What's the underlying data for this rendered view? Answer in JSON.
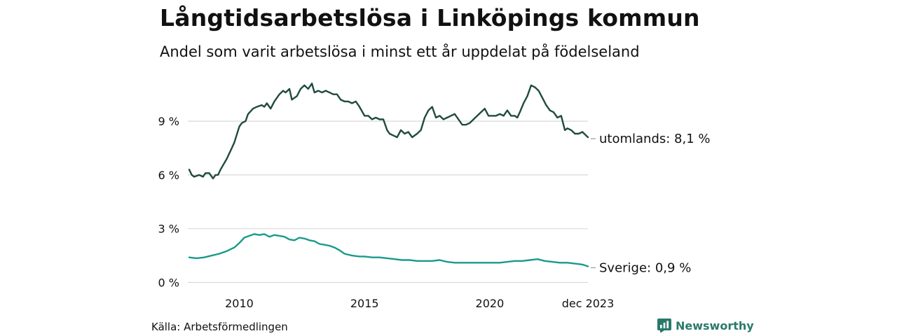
{
  "header": {
    "title": "Långtidsarbetslösa i Linköpings kommun",
    "subtitle": "Andel som varit arbetslösa i minst ett år uppdelat på födelseland"
  },
  "footer": {
    "source": "Källa: Arbetsförmedlingen",
    "brand": "Newsworthy"
  },
  "colors": {
    "utomlands": "#1f4a40",
    "sverige": "#1a9a8a",
    "grid": "#d9d9d9",
    "brand": "#2a7a6b"
  },
  "chart_data": {
    "type": "line",
    "title": "Långtidsarbetslösa i Linköpings kommun",
    "xlabel": "",
    "ylabel": "",
    "ylim": [
      0,
      11.5
    ],
    "xlim": [
      2008.0,
      2023.92
    ],
    "y_ticks": [
      {
        "value": 0,
        "label": "0 %"
      },
      {
        "value": 3,
        "label": "3 %"
      },
      {
        "value": 6,
        "label": "6 %"
      },
      {
        "value": 9,
        "label": "9 %"
      }
    ],
    "x_ticks": [
      {
        "value": 2010,
        "label": "2010"
      },
      {
        "value": 2015,
        "label": "2015"
      },
      {
        "value": 2020,
        "label": "2020"
      },
      {
        "value": 2023.92,
        "label": "dec 2023"
      }
    ],
    "series": [
      {
        "name": "utomlands",
        "end_label": "utomlands: 8,1 %",
        "x": [
          2008.0,
          2008.1,
          2008.2,
          2008.4,
          2008.55,
          2008.65,
          2008.8,
          2008.95,
          2009.05,
          2009.15,
          2009.25,
          2009.5,
          2009.7,
          2009.8,
          2010.0,
          2010.1,
          2010.25,
          2010.35,
          2010.55,
          2010.7,
          2010.9,
          2011.0,
          2011.1,
          2011.25,
          2011.4,
          2011.6,
          2011.75,
          2011.85,
          2012.0,
          2012.1,
          2012.3,
          2012.45,
          2012.6,
          2012.75,
          2012.9,
          2013.0,
          2013.15,
          2013.3,
          2013.45,
          2013.6,
          2013.75,
          2013.9,
          2014.05,
          2014.2,
          2014.35,
          2014.5,
          2014.65,
          2014.8,
          2015.0,
          2015.15,
          2015.3,
          2015.45,
          2015.6,
          2015.75,
          2015.9,
          2016.0,
          2016.15,
          2016.3,
          2016.45,
          2016.6,
          2016.75,
          2016.9,
          2017.1,
          2017.25,
          2017.4,
          2017.55,
          2017.7,
          2017.85,
          2018.0,
          2018.15,
          2018.3,
          2018.45,
          2018.6,
          2018.75,
          2018.9,
          2019.05,
          2019.2,
          2019.35,
          2019.5,
          2019.65,
          2019.8,
          2019.95,
          2020.1,
          2020.25,
          2020.4,
          2020.55,
          2020.7,
          2020.85,
          2021.0,
          2021.1,
          2021.2,
          2021.35,
          2021.5,
          2021.65,
          2021.8,
          2021.95,
          2022.1,
          2022.25,
          2022.4,
          2022.55,
          2022.7,
          2022.85,
          2023.0,
          2023.1,
          2023.25,
          2023.4,
          2023.55,
          2023.7,
          2023.92
        ],
        "values": [
          6.3,
          6.0,
          5.9,
          6.0,
          5.9,
          6.1,
          6.1,
          5.8,
          6.0,
          6.0,
          6.3,
          6.9,
          7.5,
          7.8,
          8.7,
          8.9,
          9.0,
          9.4,
          9.7,
          9.8,
          9.9,
          9.8,
          10.0,
          9.7,
          10.1,
          10.5,
          10.7,
          10.6,
          10.8,
          10.2,
          10.4,
          10.8,
          11.0,
          10.8,
          11.1,
          10.6,
          10.7,
          10.6,
          10.7,
          10.6,
          10.5,
          10.5,
          10.2,
          10.1,
          10.1,
          10.0,
          10.1,
          9.8,
          9.3,
          9.3,
          9.1,
          9.2,
          9.1,
          9.1,
          8.5,
          8.3,
          8.2,
          8.1,
          8.5,
          8.3,
          8.4,
          8.1,
          8.3,
          8.5,
          9.2,
          9.6,
          9.8,
          9.2,
          9.3,
          9.1,
          9.2,
          9.3,
          9.4,
          9.1,
          8.8,
          8.8,
          8.9,
          9.1,
          9.3,
          9.5,
          9.7,
          9.3,
          9.3,
          9.3,
          9.4,
          9.3,
          9.6,
          9.3,
          9.3,
          9.2,
          9.5,
          10.0,
          10.4,
          11.0,
          10.9,
          10.7,
          10.3,
          9.9,
          9.6,
          9.5,
          9.2,
          9.3,
          8.5,
          8.6,
          8.5,
          8.3,
          8.3,
          8.4,
          8.1
        ]
      },
      {
        "name": "Sverige",
        "end_label": "Sverige: 0,9 %",
        "x": [
          2008.0,
          2008.3,
          2008.6,
          2008.9,
          2009.2,
          2009.5,
          2009.8,
          2010.0,
          2010.2,
          2010.4,
          2010.6,
          2010.8,
          2011.0,
          2011.2,
          2011.4,
          2011.6,
          2011.8,
          2012.0,
          2012.2,
          2012.4,
          2012.6,
          2012.8,
          2013.0,
          2013.2,
          2013.4,
          2013.6,
          2013.8,
          2014.0,
          2014.2,
          2014.5,
          2014.8,
          2015.0,
          2015.3,
          2015.6,
          2015.9,
          2016.2,
          2016.5,
          2016.8,
          2017.1,
          2017.4,
          2017.7,
          2018.0,
          2018.3,
          2018.6,
          2018.9,
          2019.2,
          2019.5,
          2019.8,
          2020.1,
          2020.4,
          2020.7,
          2021.0,
          2021.3,
          2021.6,
          2021.9,
          2022.2,
          2022.5,
          2022.8,
          2023.1,
          2023.4,
          2023.7,
          2023.92
        ],
        "values": [
          1.4,
          1.35,
          1.4,
          1.5,
          1.6,
          1.75,
          1.95,
          2.2,
          2.5,
          2.6,
          2.7,
          2.65,
          2.7,
          2.55,
          2.65,
          2.6,
          2.55,
          2.4,
          2.35,
          2.5,
          2.45,
          2.35,
          2.3,
          2.15,
          2.1,
          2.05,
          1.95,
          1.8,
          1.6,
          1.5,
          1.45,
          1.45,
          1.4,
          1.4,
          1.35,
          1.3,
          1.25,
          1.25,
          1.2,
          1.2,
          1.2,
          1.25,
          1.15,
          1.1,
          1.1,
          1.1,
          1.1,
          1.1,
          1.1,
          1.1,
          1.15,
          1.2,
          1.2,
          1.25,
          1.3,
          1.2,
          1.15,
          1.1,
          1.1,
          1.05,
          1.0,
          0.9
        ]
      }
    ]
  }
}
